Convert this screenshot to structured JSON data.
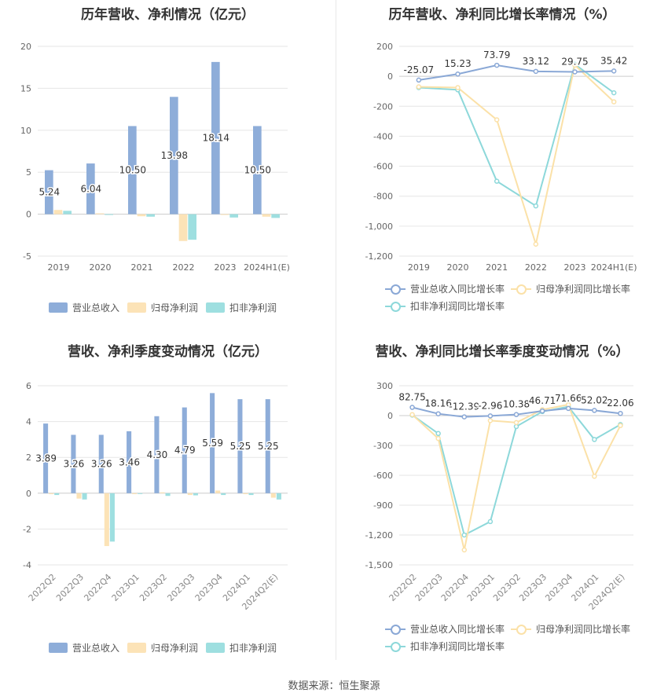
{
  "source_label": "数据来源：恒生聚源",
  "colors": {
    "revenue": "#8eadd9",
    "parent_profit": "#fce3b7",
    "deducted_profit": "#9edfe0",
    "revenue_line": "#8aa8d6",
    "parent_line": "#fbe1a8",
    "deducted_line": "#8dd8da"
  },
  "chart_data": [
    {
      "type": "bar",
      "title": "历年营收、净利情况（亿元）",
      "categories": [
        "2019",
        "2020",
        "2021",
        "2022",
        "2023",
        "2024H1(E)"
      ],
      "series": [
        {
          "name": "营业总收入",
          "values": [
            5.24,
            6.04,
            10.5,
            13.98,
            18.14,
            10.5
          ]
        },
        {
          "name": "归母净利润",
          "values": [
            0.5,
            0.1,
            -0.25,
            -3.2,
            -0.05,
            -0.3
          ]
        },
        {
          "name": "扣非净利润",
          "values": [
            0.4,
            0.0,
            -0.3,
            -3.05,
            -0.4,
            -0.45
          ]
        }
      ],
      "data_labels": [
        "5.24",
        "6.04",
        "10.50",
        "13.98",
        "18.14",
        "10.50"
      ],
      "ylim": [
        -5,
        20
      ],
      "yticks": [
        "20",
        "15",
        "10",
        "5",
        "0",
        "-5"
      ],
      "ytick_values": [
        20,
        15,
        10,
        5,
        0,
        -5
      ],
      "legend": [
        "营业总收入",
        "归母净利润",
        "扣非净利润"
      ]
    },
    {
      "type": "line",
      "title": "历年营收、净利同比增长率情况（%）",
      "categories": [
        "2019",
        "2020",
        "2021",
        "2022",
        "2023",
        "2024H1(E)"
      ],
      "series": [
        {
          "name": "营业总收入同比增长率",
          "values": [
            -25.07,
            15.23,
            73.79,
            33.12,
            29.75,
            35.42
          ]
        },
        {
          "name": "归母净利润同比增长率",
          "values": [
            -70,
            -75,
            -290,
            -1120,
            75,
            -170
          ]
        },
        {
          "name": "扣非净利润同比增长率",
          "values": [
            -75,
            -90,
            -700,
            -865,
            80,
            -110
          ]
        }
      ],
      "data_labels": [
        "-25.07",
        "15.23",
        "73.79",
        "33.12",
        "29.75",
        "35.42"
      ],
      "ylim": [
        -1200,
        200
      ],
      "yticks": [
        "200",
        "0",
        "-200",
        "-400",
        "-600",
        "-800",
        "-1,000",
        "-1,200"
      ],
      "ytick_values": [
        200,
        0,
        -200,
        -400,
        -600,
        -800,
        -1000,
        -1200
      ],
      "legend": [
        "营业总收入同比增长率",
        "归母净利润同比增长率",
        "扣非净利润同比增长率"
      ]
    },
    {
      "type": "bar",
      "title": "营收、净利季度变动情况（亿元）",
      "categories": [
        "2022Q2",
        "2022Q3",
        "2022Q4",
        "2023Q1",
        "2023Q2",
        "2023Q3",
        "2023Q4",
        "2024Q1",
        "2024Q2(E)"
      ],
      "series": [
        {
          "name": "营业总收入",
          "values": [
            3.89,
            3.26,
            3.26,
            3.46,
            4.3,
            4.79,
            5.59,
            5.25,
            5.25
          ]
        },
        {
          "name": "归母净利润",
          "values": [
            -0.05,
            -0.3,
            -2.95,
            -0.05,
            0.05,
            -0.1,
            0.15,
            -0.05,
            -0.25
          ]
        },
        {
          "name": "扣非净利润",
          "values": [
            -0.1,
            -0.35,
            -2.7,
            -0.02,
            -0.15,
            -0.12,
            -0.1,
            -0.1,
            -0.35
          ]
        }
      ],
      "data_labels": [
        "3.89",
        "3.26",
        "3.26",
        "3.46",
        "4.30",
        "4.79",
        "5.59",
        "5.25",
        "5.25"
      ],
      "ylim": [
        -4,
        6
      ],
      "yticks": [
        "6",
        "4",
        "2",
        "0",
        "-2",
        "-4"
      ],
      "ytick_values": [
        6,
        4,
        2,
        0,
        -2,
        -4
      ],
      "legend": [
        "营业总收入",
        "归母净利润",
        "扣非净利润"
      ]
    },
    {
      "type": "line",
      "title": "营收、净利同比增长率季度变动情况（%）",
      "categories": [
        "2022Q2",
        "2022Q3",
        "2022Q4",
        "2023Q1",
        "2023Q2",
        "2023Q3",
        "2023Q4",
        "2024Q1",
        "2024Q2(E)"
      ],
      "series": [
        {
          "name": "营业总收入同比增长率",
          "values": [
            82.75,
            18.16,
            -12.39,
            -2.96,
            10.38,
            46.71,
            71.66,
            52.02,
            22.06
          ]
        },
        {
          "name": "归母净利润同比增长率",
          "values": [
            10,
            -230,
            -1350,
            -50,
            -70,
            60,
            110,
            -610,
            -100
          ]
        },
        {
          "name": "扣非净利润同比增长率",
          "values": [
            5,
            -180,
            -1200,
            -1065,
            -110,
            40,
            90,
            -240,
            -90
          ]
        }
      ],
      "data_labels": [
        "82.75",
        "18.16",
        "-12.39",
        "-2.96",
        "10.38",
        "46.71",
        "71.66",
        "52.02",
        "22.06"
      ],
      "ylim": [
        -1500,
        300
      ],
      "yticks": [
        "300",
        "0",
        "-300",
        "-600",
        "-900",
        "-1,200",
        "-1,500"
      ],
      "ytick_values": [
        300,
        0,
        -300,
        -600,
        -900,
        -1200,
        -1500
      ],
      "legend": [
        "营业总收入同比增长率",
        "归母净利润同比增长率",
        "扣非净利润同比增长率"
      ]
    }
  ]
}
